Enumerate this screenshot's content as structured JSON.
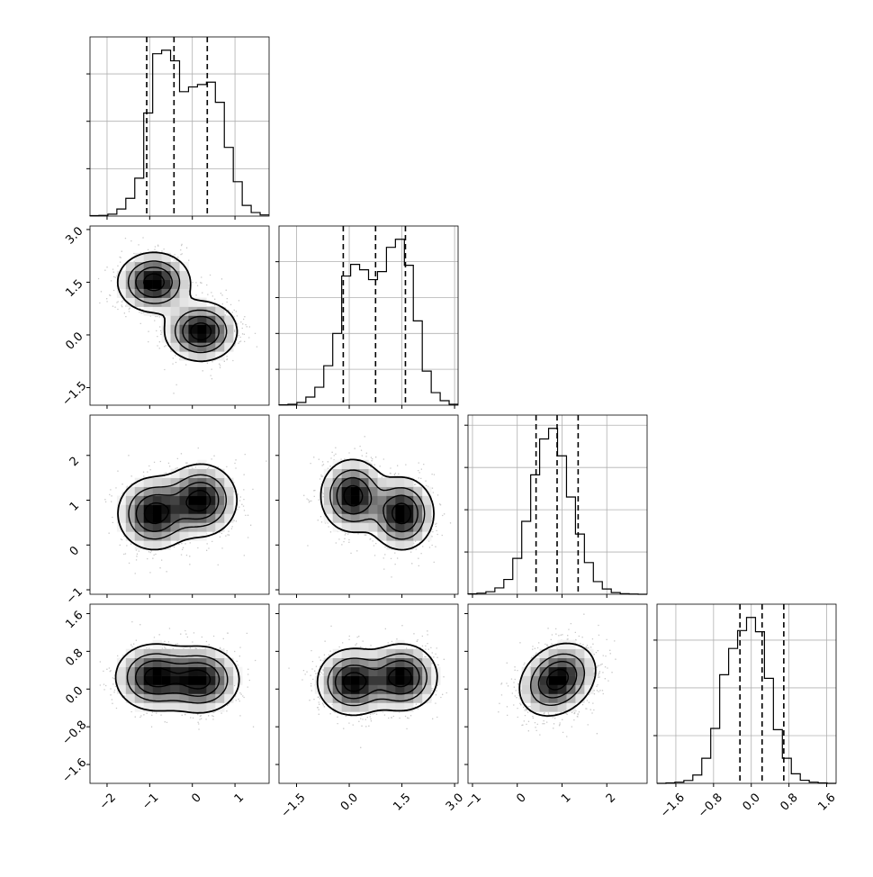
{
  "chart_data": {
    "type": "corner",
    "grid": true,
    "legend": "none",
    "colors": {
      "line": "#000000",
      "grid": "#b0b0b0",
      "points": "#4d4d4d"
    },
    "axes": {
      "p0": {
        "range": [
          -2.4,
          1.8
        ],
        "ticks": [
          -2,
          -1,
          0,
          1
        ],
        "tick_labels": [
          "−2",
          "−1",
          "0",
          "1"
        ]
      },
      "p1": {
        "range": [
          -2.0,
          3.1
        ],
        "ticks": [
          -1.5,
          0.0,
          1.5,
          3.0
        ],
        "tick_labels": [
          "−1.5",
          "0.0",
          "1.5",
          "3.0"
        ]
      },
      "p2": {
        "range": [
          -1.1,
          2.9
        ],
        "ticks": [
          -1,
          0,
          1,
          2
        ],
        "tick_labels": [
          "−1",
          "0",
          "1",
          "2"
        ]
      },
      "p3": {
        "range": [
          -2.0,
          1.8
        ],
        "ticks": [
          -1.6,
          -0.8,
          0.0,
          0.8,
          1.6
        ],
        "tick_labels": [
          "−1.6",
          "−0.8",
          "0.0",
          "0.8",
          "1.6"
        ]
      }
    },
    "histograms": [
      {
        "param": "p0",
        "bin_range": [
          -2.4,
          1.8
        ],
        "counts": [
          2,
          3,
          8,
          30,
          75,
          160,
          435,
          685,
          700,
          655,
          525,
          545,
          555,
          565,
          480,
          290,
          145,
          45,
          15,
          5
        ],
        "quantiles": [
          -1.07,
          -0.43,
          0.35
        ]
      },
      {
        "param": "p1",
        "bin_range": [
          -2.0,
          3.1
        ],
        "counts": [
          2,
          5,
          15,
          45,
          100,
          220,
          400,
          720,
          785,
          755,
          700,
          745,
          880,
          925,
          780,
          470,
          190,
          70,
          25,
          5
        ],
        "quantiles": [
          -0.17,
          0.75,
          1.6
        ]
      },
      {
        "param": "p2",
        "bin_range": [
          -1.1,
          2.9
        ],
        "counts": [
          2,
          5,
          12,
          30,
          70,
          170,
          345,
          565,
          735,
          785,
          655,
          460,
          285,
          150,
          60,
          25,
          8,
          3,
          1,
          0
        ],
        "quantiles": [
          0.42,
          0.89,
          1.36
        ]
      },
      {
        "param": "p3",
        "bin_range": [
          -2.0,
          1.8
        ],
        "counts": [
          0,
          2,
          5,
          12,
          35,
          105,
          230,
          455,
          565,
          640,
          695,
          635,
          440,
          225,
          105,
          40,
          13,
          5,
          2,
          0
        ],
        "quantiles": [
          -0.24,
          0.23,
          0.69
        ]
      }
    ],
    "joint_2d": [
      {
        "x": "p0",
        "y": "p1",
        "modes": [
          {
            "center": [
              -0.9,
              1.5
            ],
            "sigma": [
              0.42,
              0.42
            ],
            "weight": 1
          },
          {
            "center": [
              0.2,
              0.1
            ],
            "sigma": [
              0.42,
              0.42
            ],
            "weight": 1
          }
        ],
        "rho": 0
      },
      {
        "x": "p0",
        "y": "p2",
        "modes": [
          {
            "center": [
              -0.9,
              0.7
            ],
            "sigma": [
              0.42,
              0.4
            ],
            "weight": 1
          },
          {
            "center": [
              0.2,
              1.0
            ],
            "sigma": [
              0.42,
              0.4
            ],
            "weight": 1
          }
        ],
        "rho": 0
      },
      {
        "x": "p1",
        "y": "p2",
        "modes": [
          {
            "center": [
              0.1,
              1.1
            ],
            "sigma": [
              0.45,
              0.4
            ],
            "weight": 1
          },
          {
            "center": [
              1.5,
              0.7
            ],
            "sigma": [
              0.45,
              0.4
            ],
            "weight": 1
          }
        ],
        "rho": 0
      },
      {
        "x": "p0",
        "y": "p3",
        "modes": [
          {
            "center": [
              -0.9,
              0.25
            ],
            "sigma": [
              0.45,
              0.35
            ],
            "weight": 1
          },
          {
            "center": [
              0.2,
              0.2
            ],
            "sigma": [
              0.45,
              0.35
            ],
            "weight": 1
          }
        ],
        "rho": 0
      },
      {
        "x": "p1",
        "y": "p3",
        "modes": [
          {
            "center": [
              0.1,
              0.15
            ],
            "sigma": [
              0.5,
              0.35
            ],
            "weight": 1
          },
          {
            "center": [
              1.5,
              0.25
            ],
            "sigma": [
              0.5,
              0.35
            ],
            "weight": 1
          }
        ],
        "rho": 0
      },
      {
        "x": "p2",
        "y": "p3",
        "modes": [
          {
            "center": [
              0.9,
              0.2
            ],
            "sigma": [
              0.42,
              0.38
            ],
            "weight": 1
          }
        ],
        "rho": 0.25
      }
    ]
  }
}
